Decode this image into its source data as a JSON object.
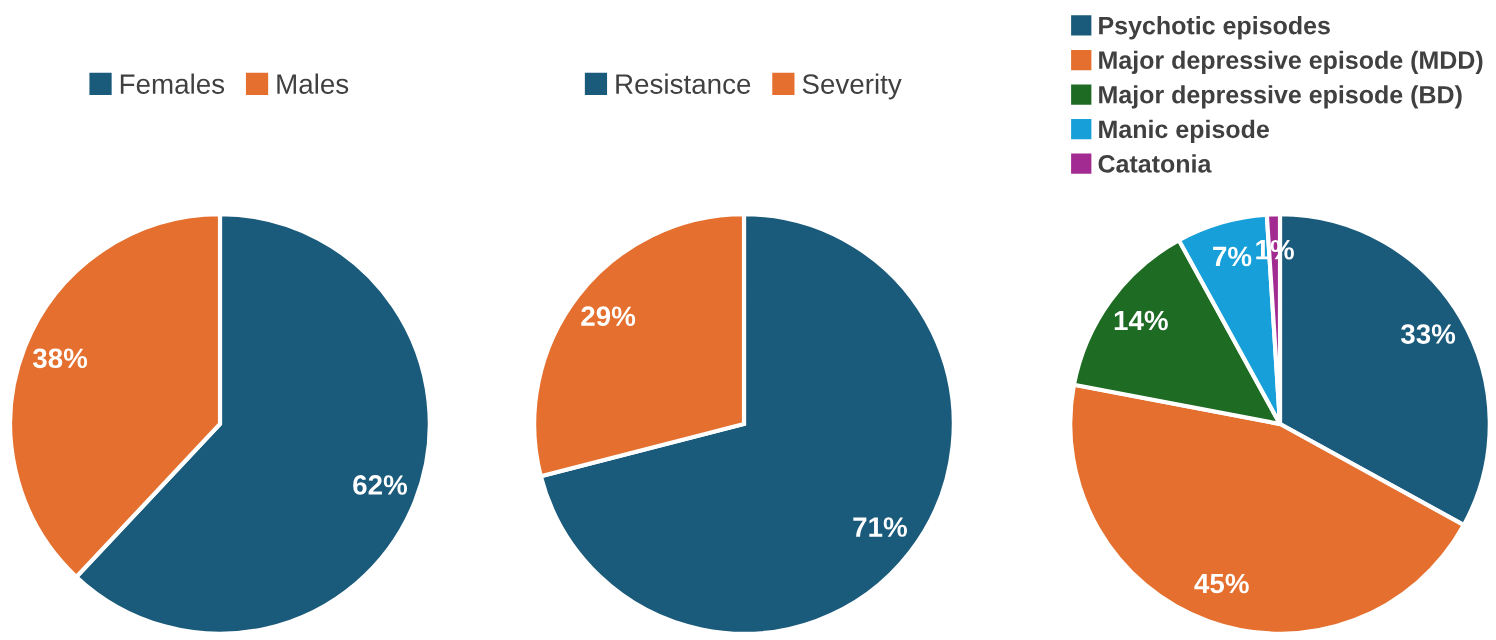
{
  "chart_data": [
    {
      "type": "pie",
      "categories": [
        "Females",
        "Males"
      ],
      "values": [
        62,
        38
      ],
      "colors": [
        "#1a5a7a",
        "#e46f2e"
      ],
      "value_labels": [
        "62%",
        "38%"
      ],
      "legend": "top"
    },
    {
      "type": "pie",
      "categories": [
        "Resistance",
        "Severity"
      ],
      "values": [
        71,
        29
      ],
      "colors": [
        "#1a5a7a",
        "#e46f2e"
      ],
      "value_labels": [
        "71%",
        "29%"
      ],
      "legend": "top"
    },
    {
      "type": "pie",
      "categories": [
        "Psychotic episodes",
        "Major depressive episode (MDD)",
        "Major depressive episode (BD)",
        "Manic episode",
        "Catatonia"
      ],
      "values": [
        33,
        45,
        14,
        7,
        1
      ],
      "colors": [
        "#1a5a7a",
        "#e46f2e",
        "#1e6b24",
        "#169fd8",
        "#a22b92"
      ],
      "value_labels": [
        "33%",
        "45%",
        "14%",
        "7%",
        "1%"
      ],
      "legend": "top left"
    }
  ]
}
